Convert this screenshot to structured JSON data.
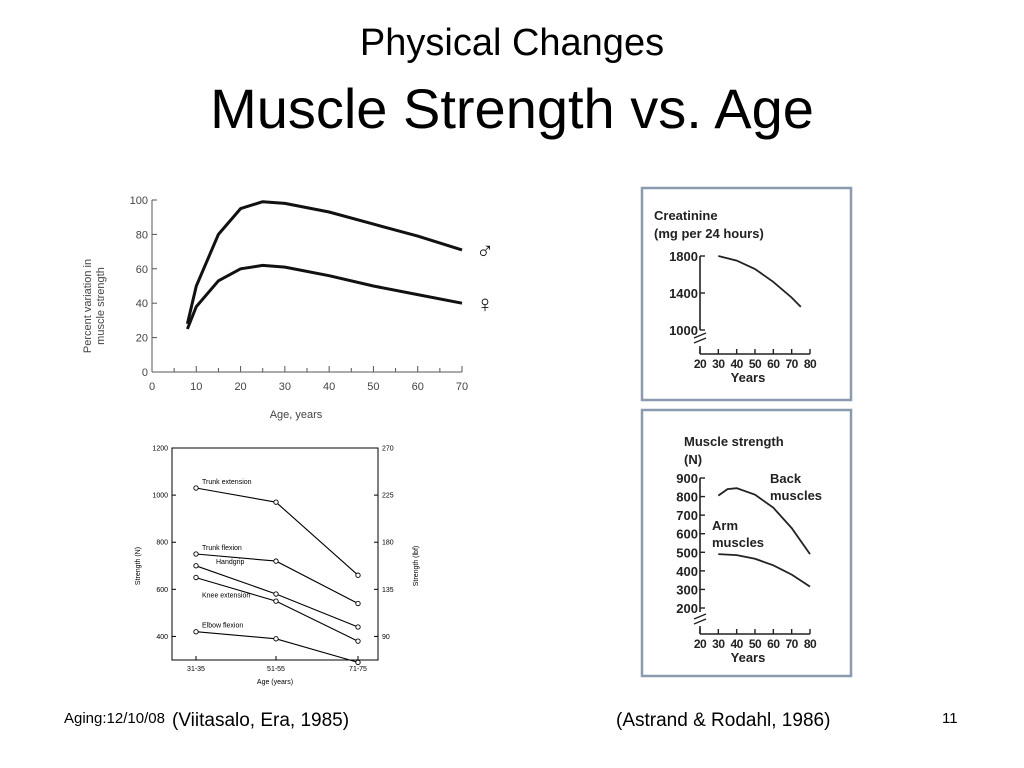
{
  "slide": {
    "title": "Physical Changes",
    "subtitle": "Muscle Strength vs. Age",
    "footer_date": "Aging:12/10/08",
    "citation_left": "(Viitasalo, Era, 1985)",
    "citation_right": "(Astrand & Rodahl, 1986)",
    "page_number": "11"
  },
  "chart_data": [
    {
      "type": "line",
      "xlabel": "Age, years",
      "ylabel": "Percent variation in muscle strength",
      "xlim": [
        0,
        70
      ],
      "ylim": [
        0,
        100
      ],
      "x_ticks": [
        "0",
        "10",
        "20",
        "30",
        "40",
        "50",
        "60",
        "70"
      ],
      "y_ticks": [
        "0",
        "20",
        "40",
        "60",
        "80",
        "100"
      ],
      "series": [
        {
          "name": "♂",
          "x": [
            8,
            10,
            15,
            20,
            25,
            30,
            40,
            50,
            60,
            70
          ],
          "values": [
            28,
            50,
            80,
            95,
            99,
            98,
            93,
            86,
            79,
            71
          ]
        },
        {
          "name": "♀",
          "x": [
            8,
            10,
            15,
            20,
            25,
            30,
            40,
            50,
            60,
            70
          ],
          "values": [
            25,
            38,
            53,
            60,
            62,
            61,
            56,
            50,
            45,
            40
          ]
        }
      ]
    },
    {
      "type": "line",
      "xlabel": "Age (years)",
      "ylabel": "Strength (N)",
      "ylabel_right": "Strength (lbf)",
      "categories": [
        "31-35",
        "51-55",
        "71-75"
      ],
      "ylim": [
        300,
        1200
      ],
      "y_ticks": [
        "400",
        "600",
        "800",
        "1000",
        "1200"
      ],
      "y_ticks_right": [
        "90",
        "135",
        "180",
        "225",
        "270"
      ],
      "series": [
        {
          "name": "Trunk extension",
          "values": [
            1030,
            970,
            660
          ]
        },
        {
          "name": "Trunk flexion",
          "values": [
            750,
            720,
            540
          ]
        },
        {
          "name": "Handgrip",
          "values": [
            700,
            580,
            440
          ]
        },
        {
          "name": "Knee extension",
          "values": [
            650,
            550,
            380
          ]
        },
        {
          "name": "Elbow flexion",
          "values": [
            420,
            390,
            290
          ]
        }
      ]
    },
    {
      "type": "line",
      "title": "Creatinine\n(mg per 24 hours)",
      "xlabel": "Years",
      "xlim": [
        20,
        80
      ],
      "ylim": [
        1000,
        1800
      ],
      "x_ticks": [
        "20",
        "30",
        "40",
        "50",
        "60",
        "70",
        "80"
      ],
      "y_ticks": [
        "1000",
        "1400",
        "1800"
      ],
      "series": [
        {
          "name": "",
          "x": [
            30,
            40,
            50,
            60,
            70,
            75
          ],
          "values": [
            1800,
            1750,
            1660,
            1520,
            1350,
            1250
          ]
        }
      ]
    },
    {
      "type": "line",
      "title": "Muscle strength\n(N)",
      "xlabel": "Years",
      "xlim": [
        20,
        80
      ],
      "ylim": [
        200,
        900
      ],
      "x_ticks": [
        "20",
        "30",
        "40",
        "50",
        "60",
        "70",
        "80"
      ],
      "y_ticks": [
        "200",
        "300",
        "400",
        "500",
        "600",
        "700",
        "800",
        "900"
      ],
      "series": [
        {
          "name": "Back muscles",
          "x": [
            30,
            35,
            40,
            50,
            60,
            70,
            80
          ],
          "values": [
            805,
            840,
            845,
            810,
            740,
            630,
            490
          ]
        },
        {
          "name": "Arm muscles",
          "x": [
            30,
            40,
            50,
            60,
            70,
            80
          ],
          "values": [
            490,
            485,
            465,
            430,
            380,
            315
          ]
        }
      ]
    }
  ]
}
